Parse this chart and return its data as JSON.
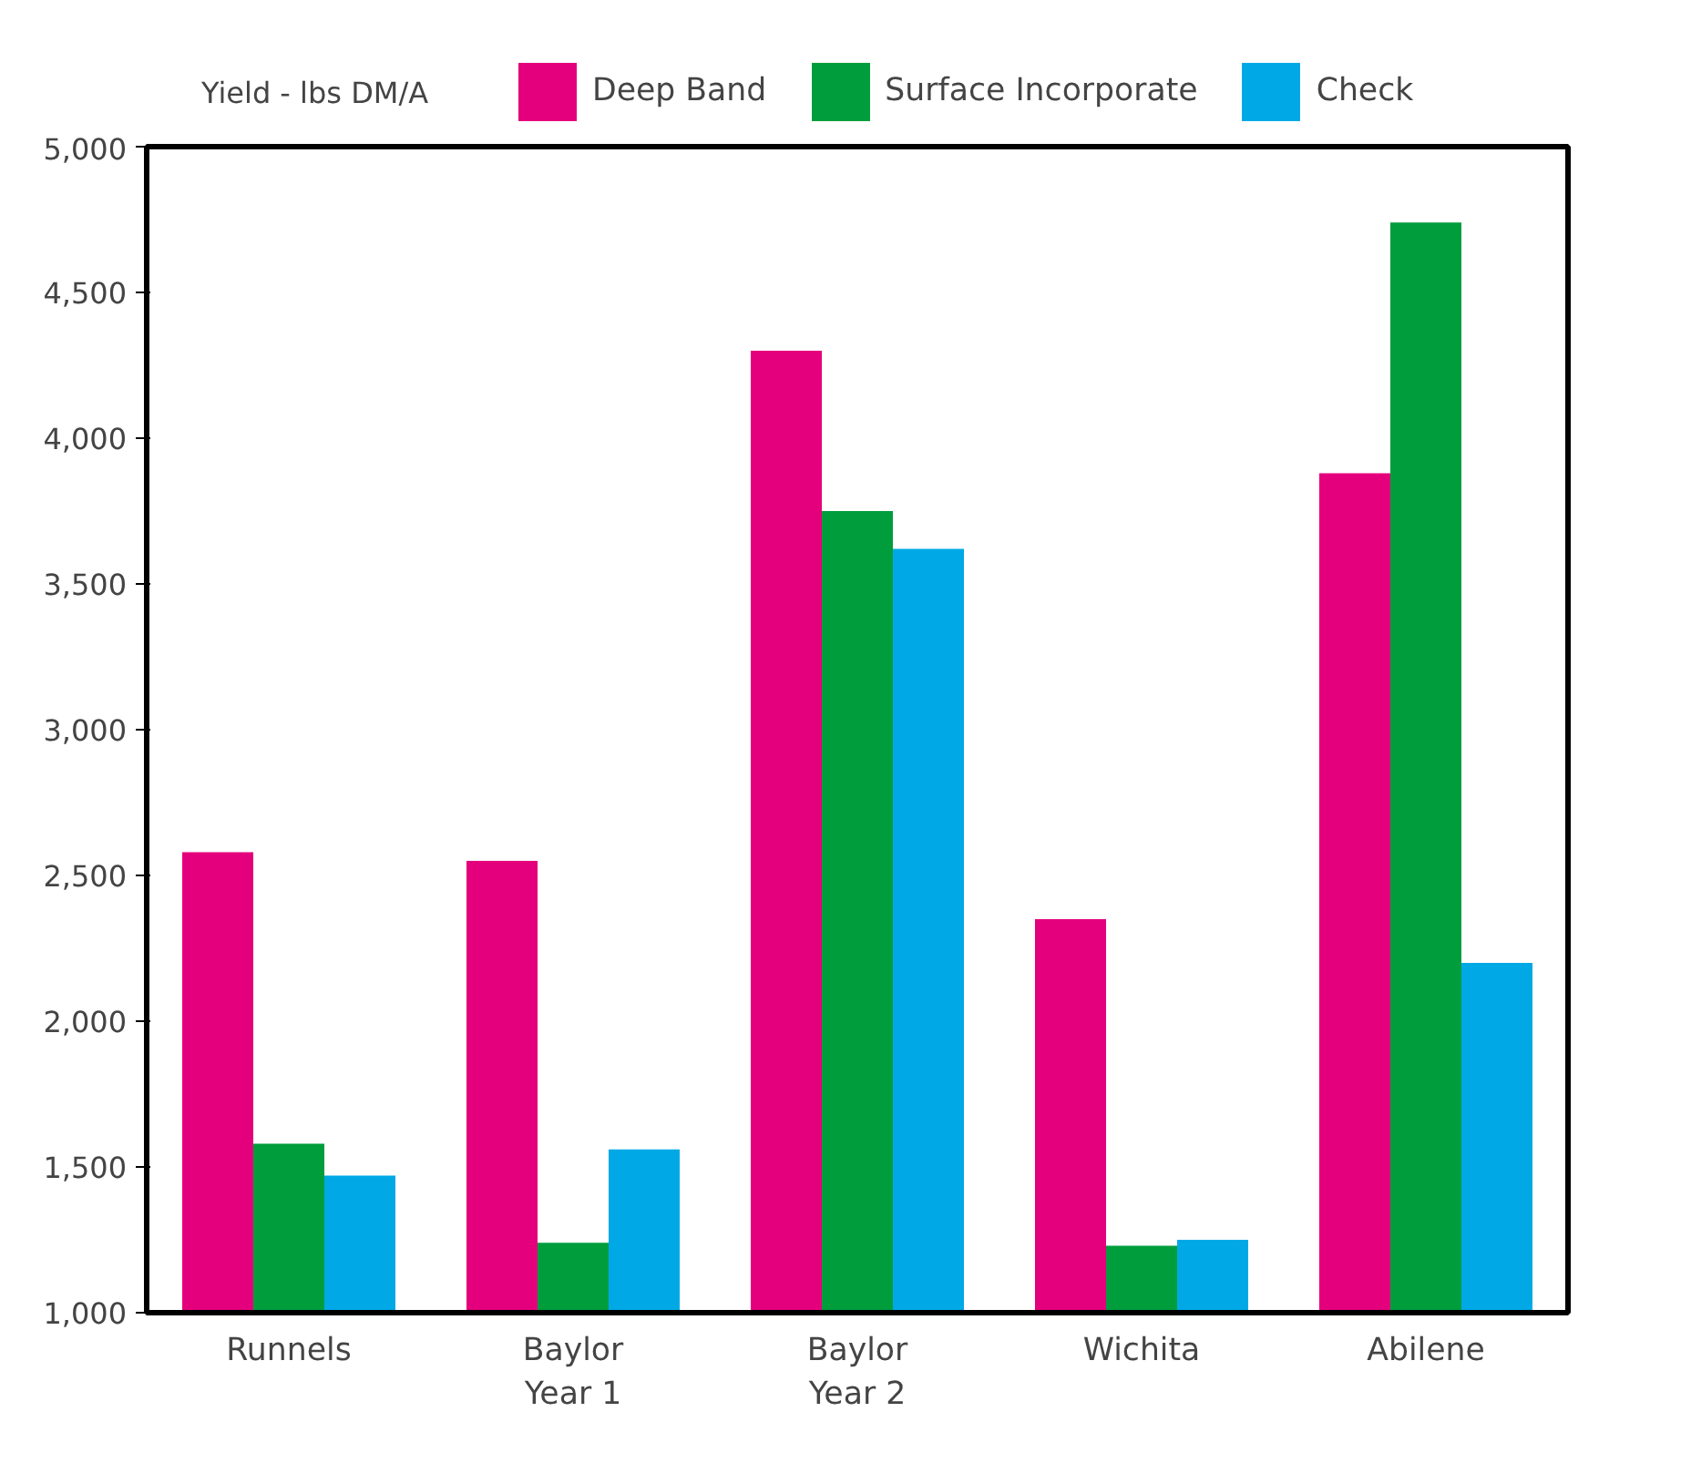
{
  "chart_data": {
    "type": "bar",
    "ylabel": "Yield - lbs DM/A",
    "categories": [
      "Runnels",
      "Baylor\nYear 1",
      "Baylor\nYear 2",
      "Wichita",
      "Abilene"
    ],
    "series": [
      {
        "name": "Deep Band",
        "color": "#e4007c",
        "values": [
          2580,
          2550,
          4300,
          2350,
          3880
        ]
      },
      {
        "name": "Surface Incorporate",
        "color": "#009d3c",
        "values": [
          1580,
          1240,
          3750,
          1230,
          4740
        ]
      },
      {
        "name": "Check",
        "color": "#00a9e6",
        "values": [
          1470,
          1560,
          3620,
          1250,
          2200
        ]
      }
    ],
    "ylim": [
      1000,
      5000
    ],
    "yticks": [
      {
        "value": 1000,
        "label": "1,000"
      },
      {
        "value": 1500,
        "label": "1,500"
      },
      {
        "value": 2000,
        "label": "2,000"
      },
      {
        "value": 2500,
        "label": "2,500"
      },
      {
        "value": 3000,
        "label": "3,000"
      },
      {
        "value": 3500,
        "label": "3,500"
      },
      {
        "value": 4000,
        "label": "4,000"
      },
      {
        "value": 4500,
        "label": "4,500"
      },
      {
        "value": 5000,
        "label": "5,000"
      }
    ],
    "grid": false,
    "legend": "top"
  }
}
